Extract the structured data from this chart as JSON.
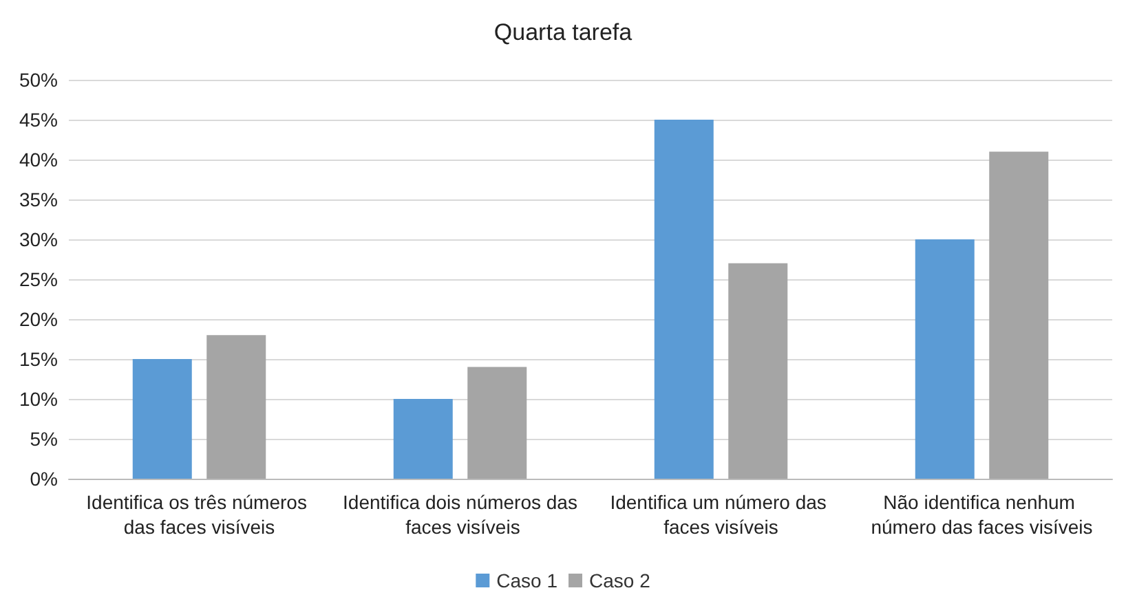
{
  "chart_data": {
    "type": "bar",
    "title": "Quarta tarefa",
    "categories": [
      "Identifica os três números das faces visíveis",
      "Identifica dois números das faces visíveis",
      "Identifica um número das faces visíveis",
      "Não identifica nenhum número das faces visíveis"
    ],
    "series": [
      {
        "name": "Caso 1",
        "color": "#5b9bd5",
        "values": [
          15,
          10,
          45,
          30
        ]
      },
      {
        "name": "Caso 2",
        "color": "#a5a5a5",
        "values": [
          18,
          14,
          27,
          41
        ]
      }
    ],
    "ylim": [
      0,
      50
    ],
    "yticks": [
      {
        "value": 0,
        "label": "0%"
      },
      {
        "value": 5,
        "label": "5%"
      },
      {
        "value": 10,
        "label": "10%"
      },
      {
        "value": 15,
        "label": "15%"
      },
      {
        "value": 20,
        "label": "20%"
      },
      {
        "value": 25,
        "label": "25%"
      },
      {
        "value": 30,
        "label": "30%"
      },
      {
        "value": 35,
        "label": "35%"
      },
      {
        "value": 40,
        "label": "40%"
      },
      {
        "value": 45,
        "label": "45%"
      },
      {
        "value": 50,
        "label": "50%"
      }
    ],
    "grid": "y",
    "legend": "bottom"
  }
}
